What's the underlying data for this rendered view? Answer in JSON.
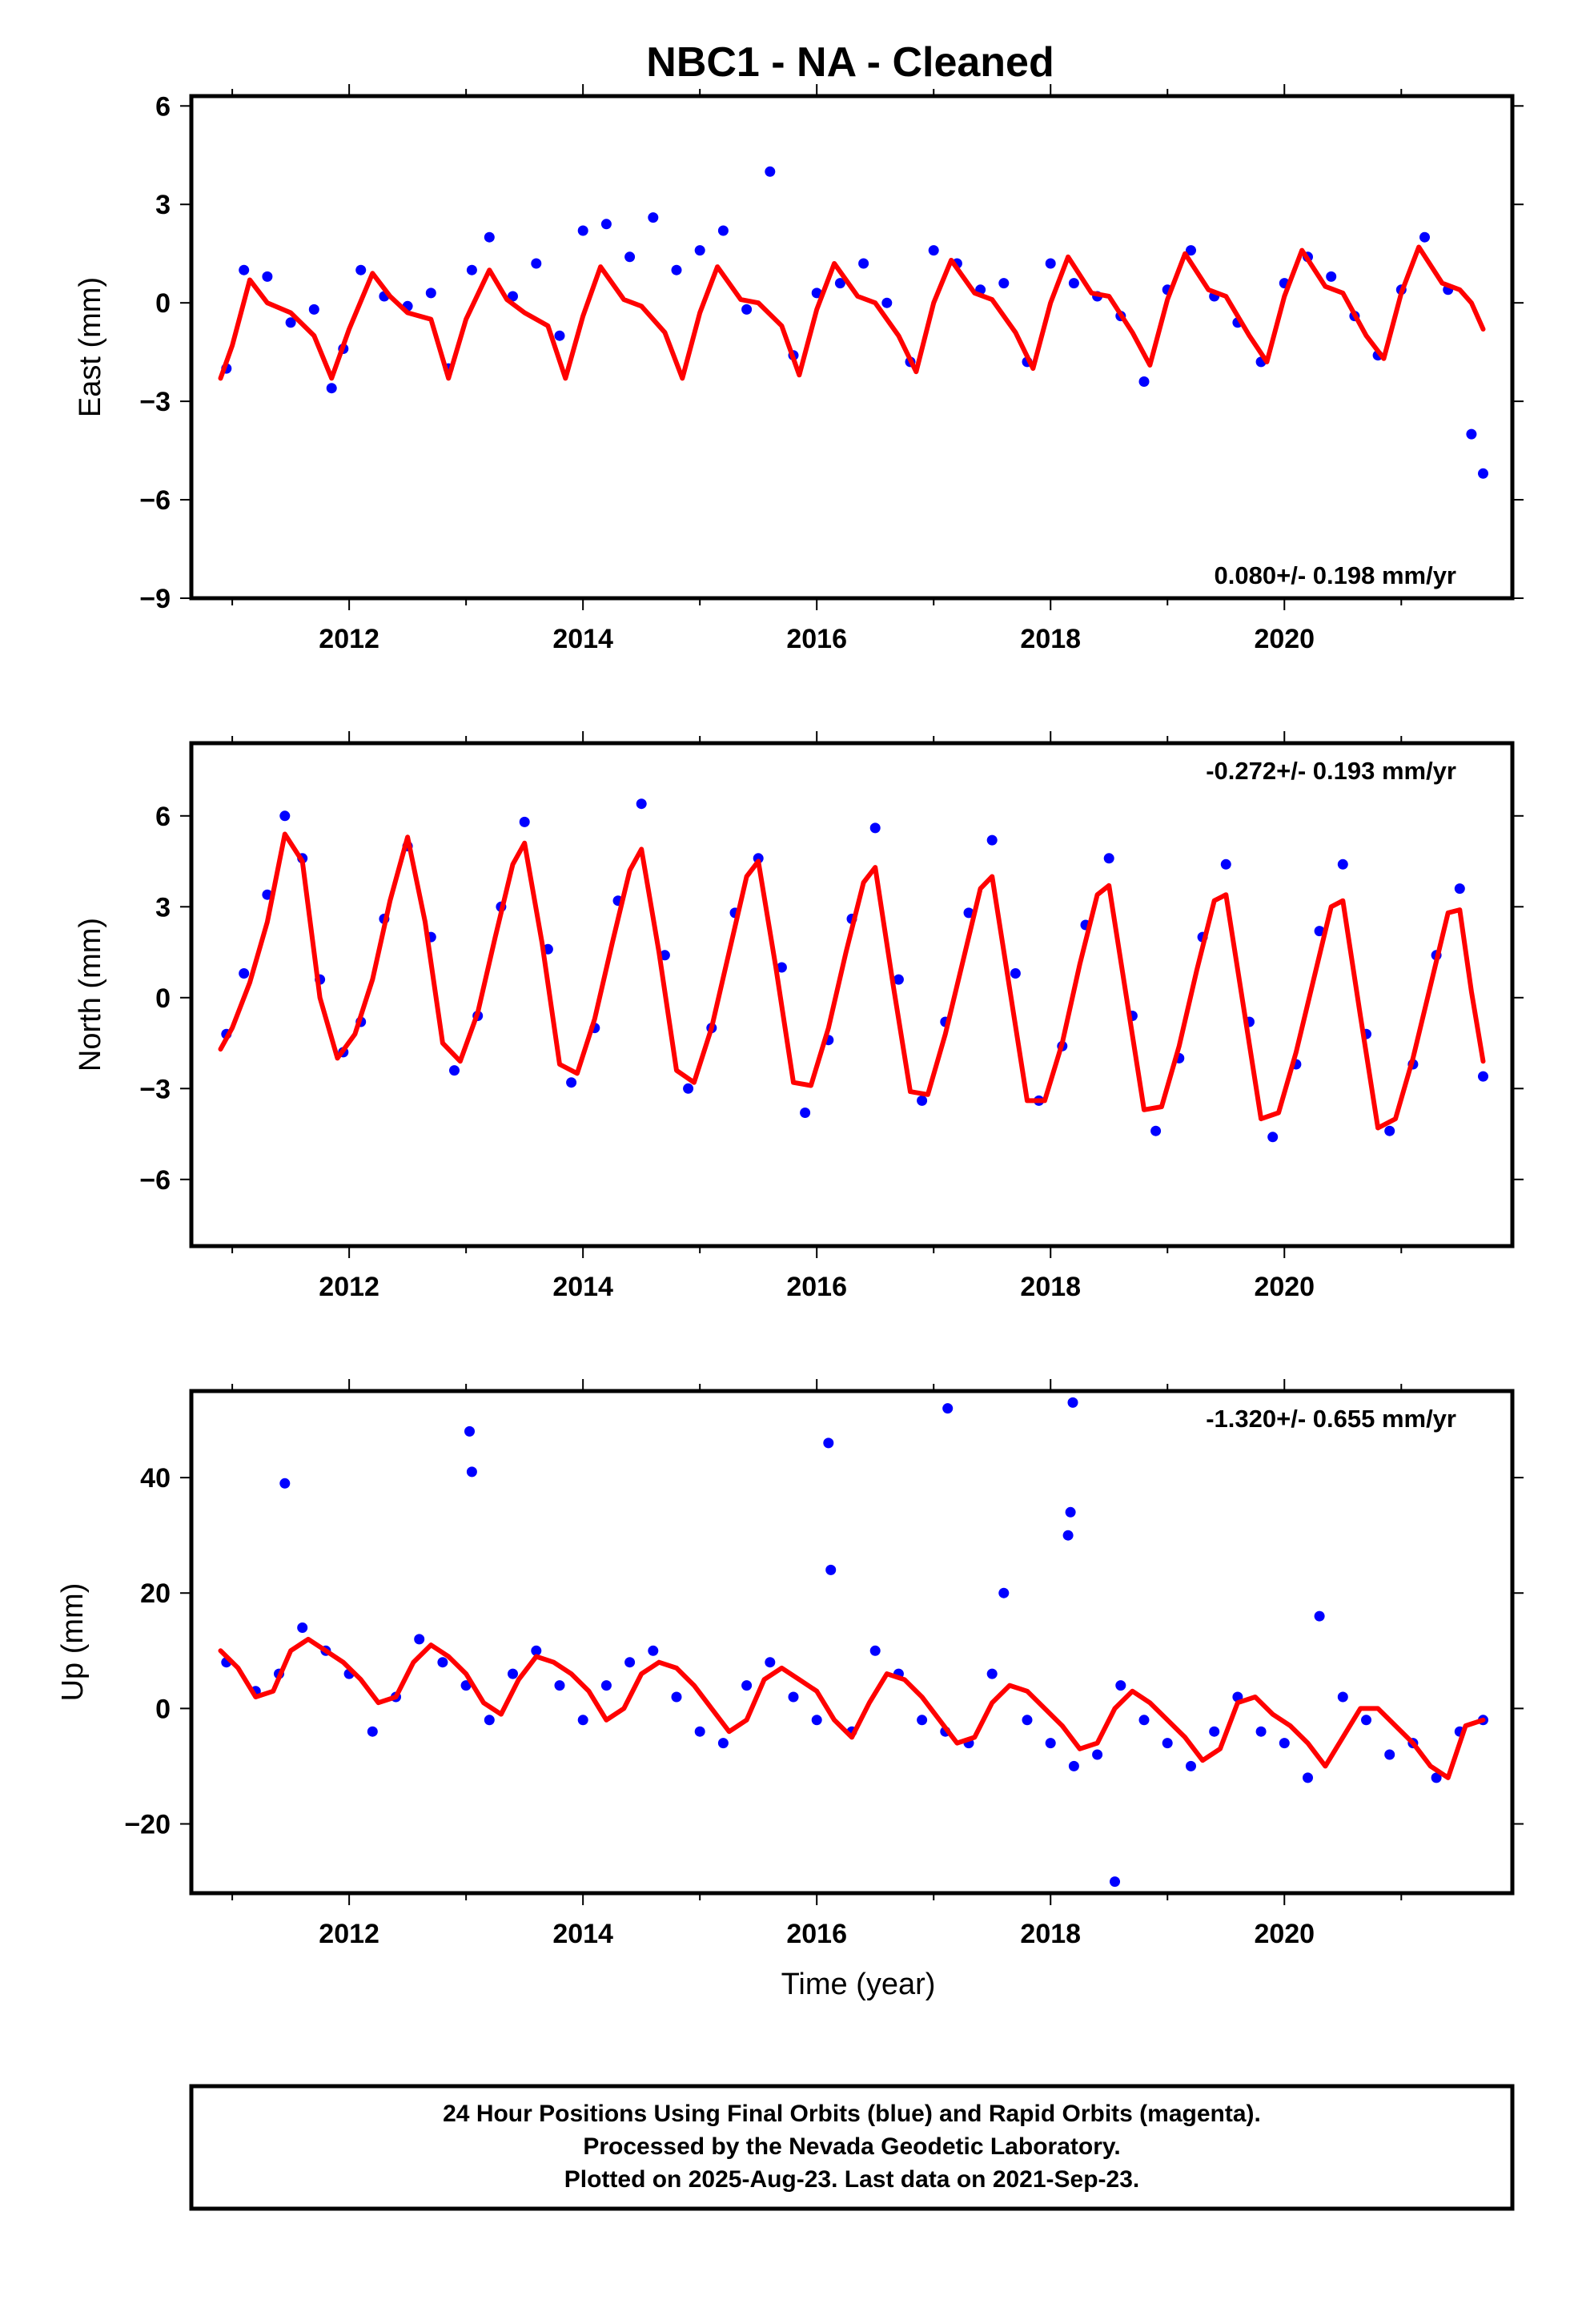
{
  "title": "NBC1  - NA - Cleaned",
  "xlabel": "Time (year)",
  "caption": [
    "24 Hour Positions Using Final Orbits (blue) and Rapid Orbits (magenta).",
    "Processed by the Nevada Geodetic Laboratory.",
    "Plotted on 2025-Aug-23. Last data on 2021-Sep-23."
  ],
  "colors": {
    "points": "#0000ff",
    "fit": "#ff0000",
    "frame": "#000000"
  },
  "chart_data": [
    {
      "type": "scatter",
      "ylabel": "East (mm)",
      "rate_text": "0.080+/- 0.198 mm/yr",
      "xlim": [
        2010.65,
        2021.95
      ],
      "ylim": [
        -9,
        6.3
      ],
      "x_ticks": [
        2012,
        2014,
        2016,
        2018,
        2020
      ],
      "x_tick_labels": [
        "2012",
        "2014",
        "2016",
        "2018",
        "2020"
      ],
      "y_ticks": [
        -9,
        -6,
        -3,
        0,
        3,
        6
      ],
      "y_tick_labels": [
        "−9",
        "−6",
        "−3",
        "0",
        "3",
        "6"
      ],
      "series": [
        {
          "kind": "points",
          "x": [
            2010.95,
            2011.1,
            2011.3,
            2011.5,
            2011.7,
            2011.85,
            2011.95,
            2012.1,
            2012.3,
            2012.5,
            2012.7,
            2012.85,
            2013.05,
            2013.2,
            2013.4,
            2013.6,
            2013.8,
            2014.0,
            2014.2,
            2014.4,
            2014.6,
            2014.8,
            2015.0,
            2015.2,
            2015.4,
            2015.6,
            2015.8,
            2016.0,
            2016.2,
            2016.4,
            2016.6,
            2016.8,
            2017.0,
            2017.2,
            2017.4,
            2017.6,
            2017.8,
            2018.0,
            2018.2,
            2018.4,
            2018.6,
            2018.8,
            2019.0,
            2019.2,
            2019.4,
            2019.6,
            2019.8,
            2020.0,
            2020.2,
            2020.4,
            2020.6,
            2020.8,
            2021.0,
            2021.2,
            2021.4,
            2021.6,
            2021.7
          ],
          "y": [
            -2.0,
            1.0,
            0.8,
            -0.6,
            -0.2,
            -2.6,
            -1.4,
            1.0,
            0.2,
            -0.1,
            0.3,
            -2.0,
            1.0,
            2.0,
            0.2,
            1.2,
            -1.0,
            2.2,
            2.4,
            1.4,
            2.6,
            1.0,
            1.6,
            2.2,
            -0.2,
            4.0,
            -1.6,
            0.3,
            0.6,
            1.2,
            0.0,
            -1.8,
            1.6,
            1.2,
            0.4,
            0.6,
            -1.8,
            1.2,
            0.6,
            0.2,
            -0.4,
            -2.4,
            0.4,
            1.6,
            0.2,
            -0.6,
            -1.8,
            0.6,
            1.4,
            0.8,
            -0.4,
            -1.6,
            0.4,
            2.0,
            0.4,
            -4.0,
            -5.2
          ]
        },
        {
          "kind": "fit",
          "x": [
            2010.9,
            2011.0,
            2011.15,
            2011.3,
            2011.5,
            2011.7,
            2011.85,
            2012.0,
            2012.2,
            2012.35,
            2012.5,
            2012.7,
            2012.85,
            2013.0,
            2013.2,
            2013.35,
            2013.5,
            2013.7,
            2013.85,
            2014.0,
            2014.15,
            2014.35,
            2014.5,
            2014.7,
            2014.85,
            2015.0,
            2015.15,
            2015.35,
            2015.5,
            2015.7,
            2015.85,
            2016.0,
            2016.15,
            2016.35,
            2016.5,
            2016.7,
            2016.85,
            2017.0,
            2017.15,
            2017.35,
            2017.5,
            2017.7,
            2017.85,
            2018.0,
            2018.15,
            2018.35,
            2018.5,
            2018.7,
            2018.85,
            2019.0,
            2019.15,
            2019.35,
            2019.5,
            2019.7,
            2019.85,
            2020.0,
            2020.15,
            2020.35,
            2020.5,
            2020.7,
            2020.85,
            2021.0,
            2021.15,
            2021.35,
            2021.5,
            2021.6,
            2021.7
          ],
          "y": [
            -2.3,
            -1.3,
            0.7,
            0.0,
            -0.3,
            -1.0,
            -2.3,
            -0.8,
            0.9,
            0.2,
            -0.3,
            -0.5,
            -2.3,
            -0.5,
            1.0,
            0.1,
            -0.3,
            -0.7,
            -2.3,
            -0.4,
            1.1,
            0.1,
            -0.1,
            -0.9,
            -2.3,
            -0.3,
            1.1,
            0.1,
            0.0,
            -0.7,
            -2.2,
            -0.2,
            1.2,
            0.2,
            0.0,
            -1.0,
            -2.1,
            0.0,
            1.3,
            0.3,
            0.1,
            -0.9,
            -2.0,
            0.0,
            1.4,
            0.3,
            0.2,
            -0.9,
            -1.9,
            0.1,
            1.5,
            0.4,
            0.2,
            -1.0,
            -1.8,
            0.2,
            1.6,
            0.5,
            0.3,
            -1.0,
            -1.7,
            0.3,
            1.7,
            0.6,
            0.4,
            0.0,
            -0.8
          ]
        }
      ]
    },
    {
      "type": "scatter",
      "ylabel": "North (mm)",
      "rate_text": "-0.272+/- 0.193 mm/yr",
      "xlim": [
        2010.65,
        2021.95
      ],
      "ylim": [
        -8.2,
        8.4
      ],
      "x_ticks": [
        2012,
        2014,
        2016,
        2018,
        2020
      ],
      "x_tick_labels": [
        "2012",
        "2014",
        "2016",
        "2018",
        "2020"
      ],
      "y_ticks": [
        -6,
        -3,
        0,
        3,
        6
      ],
      "y_tick_labels": [
        "−6",
        "−3",
        "0",
        "3",
        "6"
      ],
      "series": [
        {
          "kind": "points",
          "x": [
            2010.95,
            2011.1,
            2011.3,
            2011.45,
            2011.6,
            2011.75,
            2011.95,
            2012.1,
            2012.3,
            2012.5,
            2012.7,
            2012.9,
            2013.1,
            2013.3,
            2013.5,
            2013.7,
            2013.9,
            2014.1,
            2014.3,
            2014.5,
            2014.7,
            2014.9,
            2015.1,
            2015.3,
            2015.5,
            2015.7,
            2015.9,
            2016.1,
            2016.3,
            2016.5,
            2016.7,
            2016.9,
            2017.1,
            2017.3,
            2017.5,
            2017.7,
            2017.9,
            2018.1,
            2018.3,
            2018.5,
            2018.7,
            2018.9,
            2019.1,
            2019.3,
            2019.5,
            2019.7,
            2019.9,
            2020.1,
            2020.3,
            2020.5,
            2020.7,
            2020.9,
            2021.1,
            2021.3,
            2021.5,
            2021.7
          ],
          "y": [
            -1.2,
            0.8,
            3.4,
            6.0,
            4.6,
            0.6,
            -1.8,
            -0.8,
            2.6,
            5.0,
            2.0,
            -2.4,
            -0.6,
            3.0,
            5.8,
            1.6,
            -2.8,
            -1.0,
            3.2,
            6.4,
            1.4,
            -3.0,
            -1.0,
            2.8,
            4.6,
            1.0,
            -3.8,
            -1.4,
            2.6,
            5.6,
            0.6,
            -3.4,
            -0.8,
            2.8,
            5.2,
            0.8,
            -3.4,
            -1.6,
            2.4,
            4.6,
            -0.6,
            -4.4,
            -2.0,
            2.0,
            4.4,
            -0.8,
            -4.6,
            -2.2,
            2.2,
            4.4,
            -1.2,
            -4.4,
            -2.2,
            1.4,
            3.6,
            -2.6
          ]
        },
        {
          "kind": "fit",
          "x": [
            2010.9,
            2011.0,
            2011.15,
            2011.3,
            2011.45,
            2011.6,
            2011.75,
            2011.9,
            2012.05,
            2012.2,
            2012.35,
            2012.5,
            2012.65,
            2012.8,
            2012.95,
            2013.1,
            2013.25,
            2013.4,
            2013.5,
            2013.65,
            2013.8,
            2013.95,
            2014.1,
            2014.25,
            2014.4,
            2014.5,
            2014.65,
            2014.8,
            2014.95,
            2015.1,
            2015.25,
            2015.4,
            2015.5,
            2015.65,
            2015.8,
            2015.95,
            2016.1,
            2016.25,
            2016.4,
            2016.5,
            2016.65,
            2016.8,
            2016.95,
            2017.1,
            2017.25,
            2017.4,
            2017.5,
            2017.65,
            2017.8,
            2017.95,
            2018.1,
            2018.25,
            2018.4,
            2018.5,
            2018.65,
            2018.8,
            2018.95,
            2019.1,
            2019.25,
            2019.4,
            2019.5,
            2019.65,
            2019.8,
            2019.95,
            2020.1,
            2020.25,
            2020.4,
            2020.5,
            2020.65,
            2020.8,
            2020.95,
            2021.1,
            2021.25,
            2021.4,
            2021.5,
            2021.6,
            2021.7
          ],
          "y": [
            -1.7,
            -1.0,
            0.5,
            2.5,
            5.4,
            4.5,
            0.0,
            -2.0,
            -1.2,
            0.6,
            3.2,
            5.3,
            2.5,
            -1.5,
            -2.1,
            -0.5,
            2.0,
            4.4,
            5.1,
            1.8,
            -2.2,
            -2.5,
            -0.7,
            1.8,
            4.2,
            4.9,
            1.5,
            -2.4,
            -2.8,
            -1.0,
            1.5,
            4.0,
            4.5,
            1.0,
            -2.8,
            -2.9,
            -1.0,
            1.5,
            3.8,
            4.3,
            0.5,
            -3.1,
            -3.2,
            -1.2,
            1.2,
            3.6,
            4.0,
            0.3,
            -3.4,
            -3.4,
            -1.5,
            1.1,
            3.4,
            3.7,
            0.0,
            -3.7,
            -3.6,
            -1.6,
            0.9,
            3.2,
            3.4,
            -0.3,
            -4.0,
            -3.8,
            -1.8,
            0.6,
            3.0,
            3.2,
            -0.6,
            -4.3,
            -4.0,
            -2.0,
            0.4,
            2.8,
            2.9,
            0.2,
            -2.1
          ]
        }
      ]
    },
    {
      "type": "scatter",
      "ylabel": "Up (mm)",
      "rate_text": "-1.320+/- 0.655 mm/yr",
      "xlim": [
        2010.65,
        2021.95
      ],
      "ylim": [
        -32,
        55
      ],
      "x_ticks": [
        2012,
        2014,
        2016,
        2018,
        2020
      ],
      "x_tick_labels": [
        "2012",
        "2014",
        "2016",
        "2018",
        "2020"
      ],
      "y_ticks": [
        -20,
        0,
        20,
        40
      ],
      "y_tick_labels": [
        "−20",
        "0",
        "20",
        "40"
      ],
      "series": [
        {
          "kind": "points",
          "x": [
            2010.95,
            2011.2,
            2011.4,
            2011.45,
            2011.6,
            2011.8,
            2012.0,
            2012.2,
            2012.4,
            2012.6,
            2012.8,
            2013.0,
            2013.03,
            2013.05,
            2013.2,
            2013.4,
            2013.6,
            2013.8,
            2014.0,
            2014.2,
            2014.4,
            2014.6,
            2014.8,
            2015.0,
            2015.2,
            2015.4,
            2015.6,
            2015.8,
            2016.0,
            2016.1,
            2016.12,
            2016.3,
            2016.5,
            2016.7,
            2016.9,
            2017.1,
            2017.12,
            2017.3,
            2017.5,
            2017.6,
            2017.8,
            2018.0,
            2018.15,
            2018.17,
            2018.19,
            2018.2,
            2018.4,
            2018.55,
            2018.6,
            2018.8,
            2019.0,
            2019.2,
            2019.4,
            2019.6,
            2019.8,
            2020.0,
            2020.2,
            2020.3,
            2020.5,
            2020.7,
            2020.9,
            2021.1,
            2021.3,
            2021.5,
            2021.7
          ],
          "y": [
            8,
            3,
            6,
            39,
            14,
            10,
            6,
            -4,
            2,
            12,
            8,
            4,
            48,
            41,
            -2,
            6,
            10,
            4,
            -2,
            4,
            8,
            10,
            2,
            -4,
            -6,
            4,
            8,
            2,
            -2,
            46,
            24,
            -4,
            10,
            6,
            -2,
            -4,
            52,
            -6,
            6,
            20,
            -2,
            -6,
            30,
            34,
            53,
            -10,
            -8,
            -30,
            4,
            -2,
            -6,
            -10,
            -4,
            2,
            -4,
            -6,
            -12,
            16,
            2,
            -2,
            -8,
            -6,
            -12,
            -4,
            -2
          ]
        },
        {
          "kind": "fit",
          "x": [
            2010.9,
            2011.05,
            2011.2,
            2011.35,
            2011.5,
            2011.65,
            2011.8,
            2011.95,
            2012.1,
            2012.25,
            2012.4,
            2012.55,
            2012.7,
            2012.85,
            2013.0,
            2013.15,
            2013.3,
            2013.45,
            2013.6,
            2013.75,
            2013.9,
            2014.05,
            2014.2,
            2014.35,
            2014.5,
            2014.65,
            2014.8,
            2014.95,
            2015.1,
            2015.25,
            2015.4,
            2015.55,
            2015.7,
            2015.85,
            2016.0,
            2016.15,
            2016.3,
            2016.45,
            2016.6,
            2016.75,
            2016.9,
            2017.05,
            2017.2,
            2017.35,
            2017.5,
            2017.65,
            2017.8,
            2017.95,
            2018.1,
            2018.25,
            2018.4,
            2018.55,
            2018.7,
            2018.85,
            2019.0,
            2019.15,
            2019.3,
            2019.45,
            2019.6,
            2019.75,
            2019.9,
            2020.05,
            2020.2,
            2020.35,
            2020.5,
            2020.65,
            2020.8,
            2020.95,
            2021.1,
            2021.25,
            2021.4,
            2021.55,
            2021.7
          ],
          "y": [
            10,
            7,
            2,
            3,
            10,
            12,
            10,
            8,
            5,
            1,
            2,
            8,
            11,
            9,
            6,
            1,
            -1,
            5,
            9,
            8,
            6,
            3,
            -2,
            0,
            6,
            8,
            7,
            4,
            0,
            -4,
            -2,
            5,
            7,
            5,
            3,
            -2,
            -5,
            1,
            6,
            5,
            2,
            -2,
            -6,
            -5,
            1,
            4,
            3,
            0,
            -3,
            -7,
            -6,
            0,
            3,
            1,
            -2,
            -5,
            -9,
            -7,
            1,
            2,
            -1,
            -3,
            -6,
            -10,
            -5,
            0,
            0,
            -3,
            -6,
            -10,
            -12,
            -3,
            -2
          ]
        }
      ]
    }
  ]
}
